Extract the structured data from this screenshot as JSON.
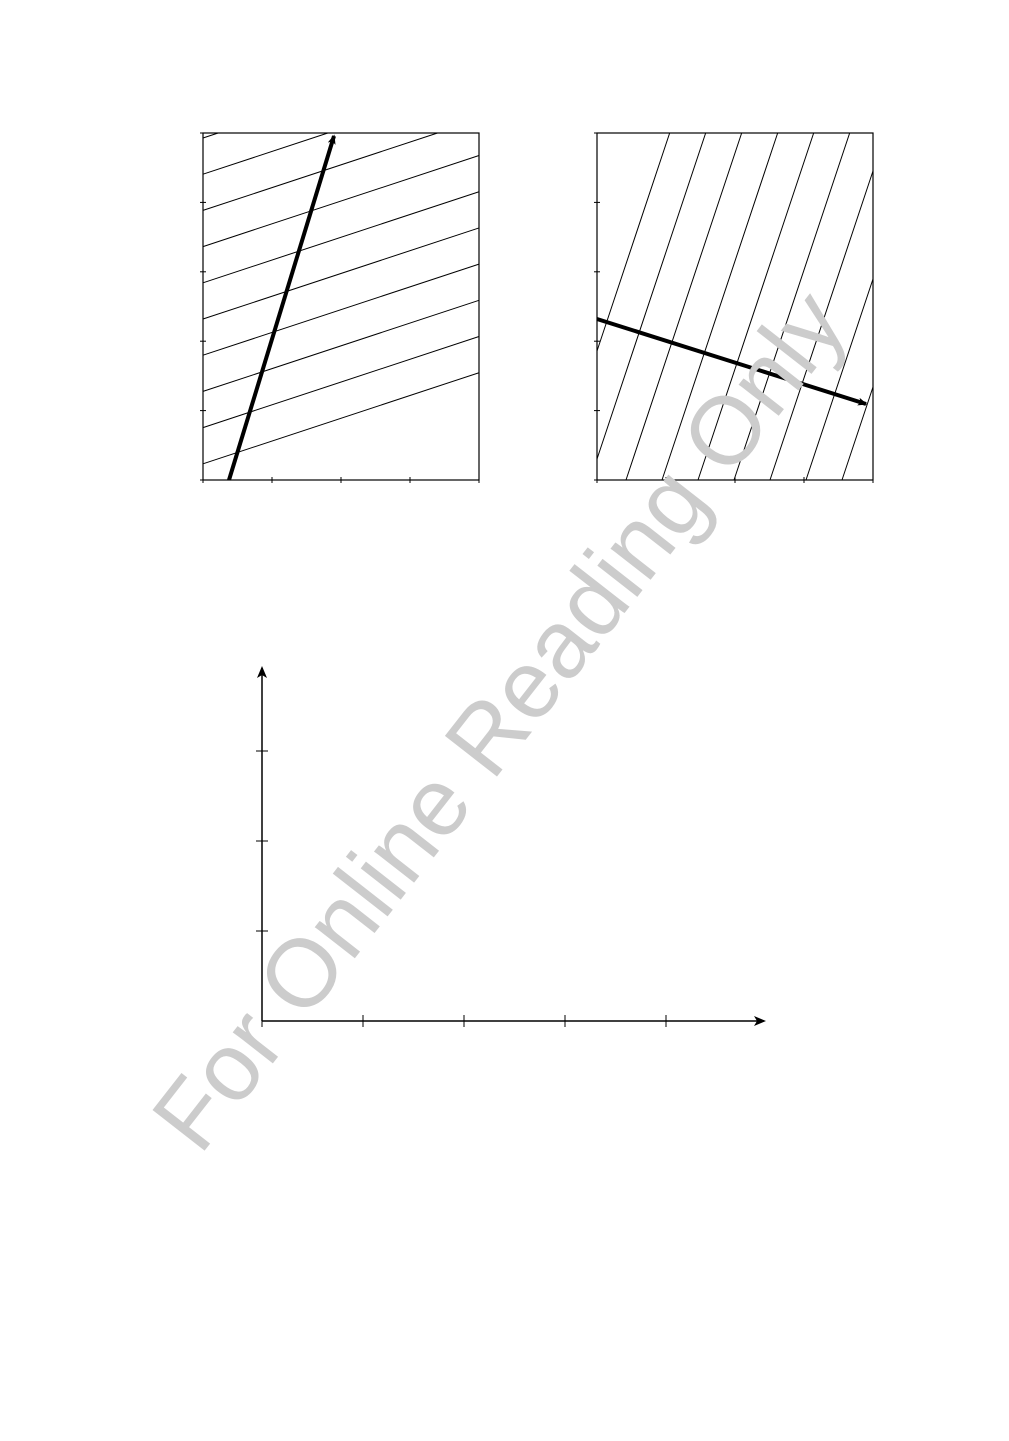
{
  "watermark": {
    "text": "For Online Reading Only",
    "color": "#cccccc"
  },
  "colors": {
    "ink": "#000000",
    "background": "#ffffff"
  },
  "panels": [
    {
      "id": "left-wave-panel",
      "x_ticks": 4,
      "y_ticks": 5,
      "line_count": 10,
      "line_slope": -0.33,
      "arrow_direction": [
        0.28,
        0.96
      ]
    },
    {
      "id": "right-wave-panel",
      "x_ticks": 4,
      "y_ticks": 5,
      "line_count": 9,
      "line_slope": 3.0,
      "arrow_direction": [
        0.96,
        -0.29
      ]
    }
  ],
  "axes_plot": {
    "x_ticks": 4,
    "y_ticks": 3
  }
}
